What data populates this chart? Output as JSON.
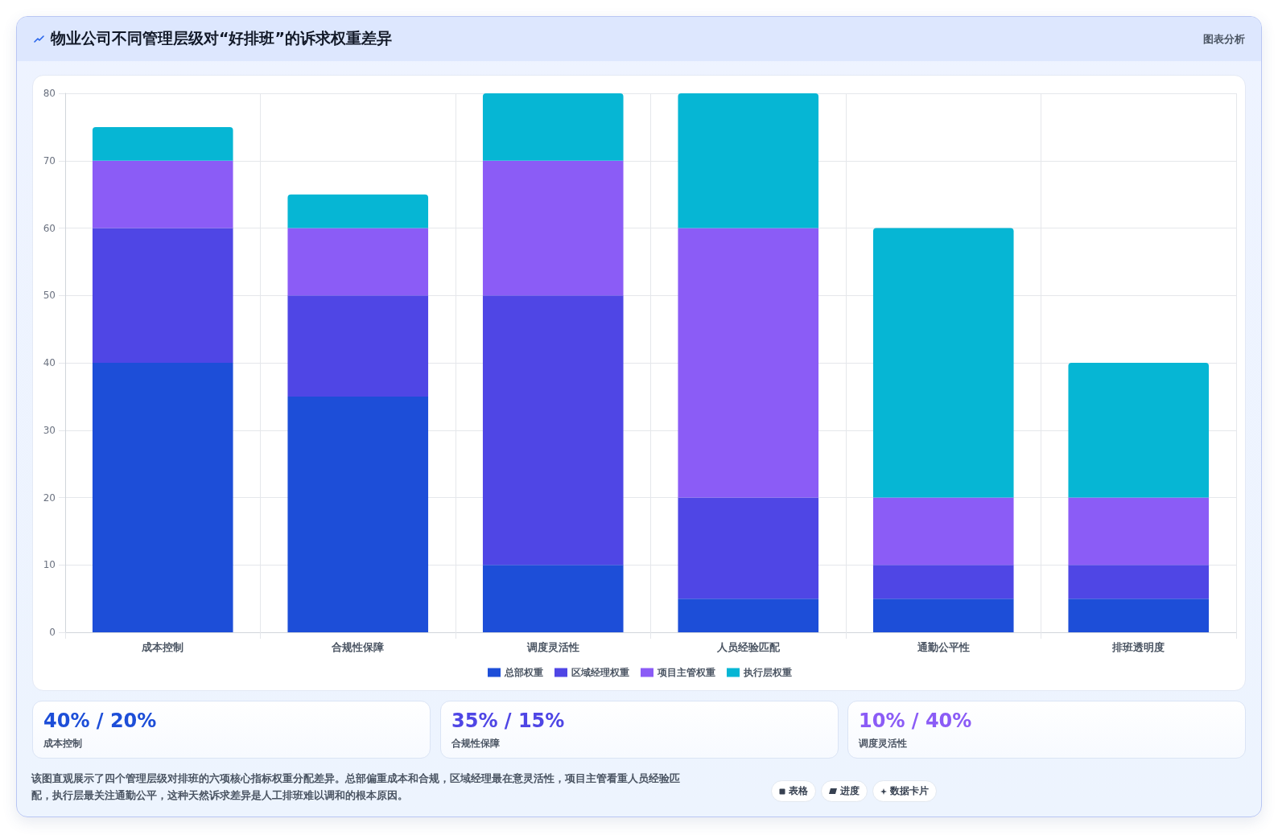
{
  "chart_data": {
    "type": "bar",
    "title": "物业公司不同管理层级对“好排班”的诉求权重差异",
    "categories": [
      "成本控制",
      "合规性保障",
      "调度灵活性",
      "人员经验匹配",
      "通勤公平性",
      "排班透明度"
    ],
    "series": [
      {
        "name": "总部权重",
        "color": "#1d4ed8",
        "values": [
          40,
          35,
          10,
          5,
          5,
          5
        ]
      },
      {
        "name": "区域经理权重",
        "color": "#4f46e5",
        "values": [
          20,
          15,
          40,
          15,
          5,
          5
        ]
      },
      {
        "name": "项目主管权重",
        "color": "#8b5cf6",
        "values": [
          10,
          10,
          20,
          40,
          10,
          10
        ]
      },
      {
        "name": "执行层权重",
        "color": "#06b6d4",
        "values": [
          5,
          5,
          10,
          20,
          40,
          20
        ]
      }
    ],
    "stacked": true,
    "ylim": [
      0,
      80
    ],
    "yticks": [
      0,
      10,
      20,
      30,
      40,
      50,
      60,
      70,
      80
    ],
    "grid": true,
    "legend": "bottom",
    "annotations": [
      "图表分析",
      "40% / 20%",
      "成本控制",
      "35% / 15%",
      "合规性保障",
      "10% / 40%",
      "调度灵活性",
      "该图直观展示了四个管理层级对排班的六项核心指标权重分配差异。总部偏重成本和合规，区域经理最在意灵活性，项目主管看重人员经验匹配，执行层最关注通勤公平，这种天然诉求差异是人工排班难以调和的根本原因。",
      "表格",
      "进度",
      "数据卡片"
    ]
  }
}
